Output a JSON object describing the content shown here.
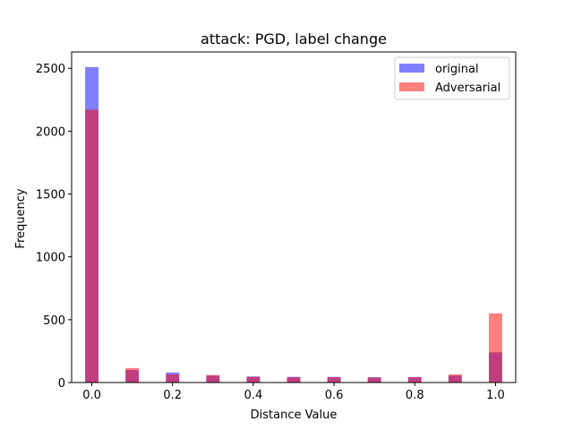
{
  "chart_data": {
    "type": "bar",
    "title": "attack: PGD, label change",
    "xlabel": "Distance Value",
    "ylabel": "Frequency",
    "xlim": [
      -0.05,
      1.05
    ],
    "ylim": [
      0,
      2630
    ],
    "xticks": [
      0.0,
      0.2,
      0.4,
      0.6,
      0.8,
      1.0
    ],
    "xtick_labels": [
      "0.0",
      "0.2",
      "0.4",
      "0.6",
      "0.8",
      "1.0"
    ],
    "yticks": [
      0,
      500,
      1000,
      1500,
      2000,
      2500
    ],
    "ytick_labels": [
      "0",
      "500",
      "1000",
      "1500",
      "2000",
      "2500"
    ],
    "legend_position": "top-right",
    "series": [
      {
        "name": "original",
        "color": "#0000ff",
        "alpha": 0.5,
        "x_centers": [
          0.0,
          0.1,
          0.2,
          0.3,
          0.4,
          0.5,
          0.6,
          0.7,
          0.8,
          0.9,
          1.0
        ],
        "values": [
          2510,
          100,
          80,
          55,
          48,
          45,
          45,
          42,
          44,
          55,
          240
        ]
      },
      {
        "name": "Adversarial",
        "color": "#ff0000",
        "alpha": 0.5,
        "x_centers": [
          0.0,
          0.1,
          0.2,
          0.3,
          0.4,
          0.5,
          0.6,
          0.7,
          0.8,
          0.9,
          1.0
        ],
        "values": [
          2170,
          115,
          65,
          60,
          45,
          42,
          42,
          40,
          42,
          65,
          550
        ]
      }
    ],
    "bar_width": 0.033
  }
}
